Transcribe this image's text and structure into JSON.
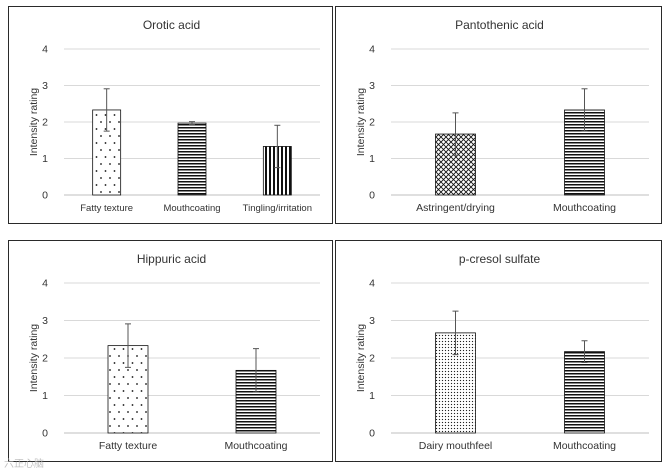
{
  "chart_data": [
    {
      "type": "bar",
      "title": "Orotic acid",
      "ylabel": "Intensity rating",
      "ylim": [
        0,
        4
      ],
      "yticks": [
        0,
        1,
        2,
        3,
        4
      ],
      "categories": [
        "Fatty texture",
        "Mouthcoating",
        "Tingling/irritation"
      ],
      "values": [
        2.33,
        1.97,
        1.33
      ],
      "errors": [
        0.58,
        0.04,
        0.58
      ],
      "patterns": [
        "dots",
        "hlines",
        "vlines"
      ],
      "grid": true
    },
    {
      "type": "bar",
      "title": "Pantothenic acid",
      "ylabel": "Intensity rating",
      "ylim": [
        0,
        4
      ],
      "yticks": [
        0,
        1,
        2,
        3,
        4
      ],
      "categories": [
        "Astringent/drying",
        "Mouthcoating"
      ],
      "values": [
        1.67,
        2.33
      ],
      "errors": [
        0.58,
        0.58
      ],
      "patterns": [
        "crosshatch",
        "hlines"
      ],
      "grid": true
    },
    {
      "type": "bar",
      "title": "Hippuric acid",
      "ylabel": "Intensity rating",
      "ylim": [
        0,
        4
      ],
      "yticks": [
        0,
        1,
        2,
        3,
        4
      ],
      "categories": [
        "Fatty texture",
        "Mouthcoating"
      ],
      "values": [
        2.33,
        1.67
      ],
      "errors": [
        0.58,
        0.58
      ],
      "patterns": [
        "dots",
        "hlines"
      ],
      "grid": true
    },
    {
      "type": "bar",
      "title": "p-cresol sulfate",
      "ylabel": "Intensity rating",
      "ylim": [
        0,
        4
      ],
      "yticks": [
        0,
        1,
        2,
        3,
        4
      ],
      "categories": [
        "Dairy mouthfeel",
        "Mouthcoating"
      ],
      "values": [
        2.67,
        2.17
      ],
      "errors": [
        0.58,
        0.29
      ],
      "patterns": [
        "finedots",
        "hlines"
      ],
      "grid": true
    }
  ],
  "watermark": "六正心脑"
}
